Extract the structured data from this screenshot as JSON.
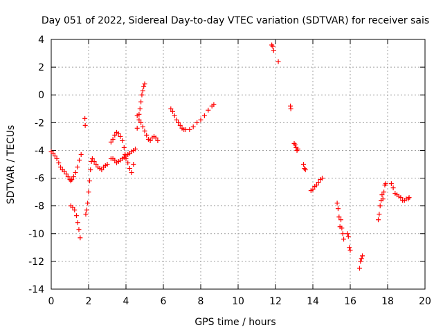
{
  "chart_data": {
    "type": "scatter",
    "title": "Day 051 of 2022, Sidereal Day-to-day VTEC variation (SDTVAR) for receiver sais",
    "xlabel": "GPS time / hours",
    "ylabel": "SDTVAR / TECUs",
    "xlim": [
      0,
      20
    ],
    "ylim": [
      -14,
      4
    ],
    "xticks": [
      0,
      2,
      4,
      6,
      8,
      10,
      12,
      14,
      16,
      18,
      20
    ],
    "yticks": [
      -14,
      -12,
      -10,
      -8,
      -6,
      -4,
      -2,
      0,
      2,
      4
    ],
    "grid": true,
    "marker": "+",
    "color": "#ff0000",
    "series": [
      {
        "name": "SDTVAR",
        "points": [
          [
            0.0,
            -4.1
          ],
          [
            0.1,
            -4.2
          ],
          [
            0.2,
            -4.4
          ],
          [
            0.3,
            -4.6
          ],
          [
            0.4,
            -4.9
          ],
          [
            0.5,
            -5.2
          ],
          [
            0.6,
            -5.4
          ],
          [
            0.7,
            -5.5
          ],
          [
            0.8,
            -5.7
          ],
          [
            0.9,
            -5.9
          ],
          [
            1.0,
            -6.1
          ],
          [
            1.05,
            -6.2
          ],
          [
            1.1,
            -6.1
          ],
          [
            1.2,
            -5.9
          ],
          [
            1.3,
            -5.6
          ],
          [
            1.4,
            -5.2
          ],
          [
            1.5,
            -4.7
          ],
          [
            1.6,
            -4.3
          ],
          [
            1.05,
            -8.0
          ],
          [
            1.15,
            -8.1
          ],
          [
            1.25,
            -8.3
          ],
          [
            1.35,
            -8.7
          ],
          [
            1.42,
            -9.2
          ],
          [
            1.48,
            -9.7
          ],
          [
            1.55,
            -10.3
          ],
          [
            1.8,
            -1.7
          ],
          [
            1.82,
            -2.2
          ],
          [
            1.85,
            -8.6
          ],
          [
            1.9,
            -8.3
          ],
          [
            1.95,
            -7.8
          ],
          [
            2.0,
            -7.0
          ],
          [
            2.05,
            -6.2
          ],
          [
            2.1,
            -5.4
          ],
          [
            2.15,
            -4.8
          ],
          [
            2.2,
            -4.6
          ],
          [
            2.3,
            -4.8
          ],
          [
            2.4,
            -5.0
          ],
          [
            2.5,
            -5.2
          ],
          [
            2.6,
            -5.3
          ],
          [
            2.7,
            -5.4
          ],
          [
            2.8,
            -5.2
          ],
          [
            2.9,
            -5.1
          ],
          [
            3.0,
            -5.0
          ],
          [
            3.2,
            -4.6
          ],
          [
            3.3,
            -4.6
          ],
          [
            3.4,
            -4.7
          ],
          [
            3.5,
            -4.9
          ],
          [
            3.6,
            -4.8
          ],
          [
            3.7,
            -4.7
          ],
          [
            3.8,
            -4.6
          ],
          [
            3.9,
            -4.5
          ],
          [
            4.0,
            -4.4
          ],
          [
            4.1,
            -4.3
          ],
          [
            4.2,
            -4.2
          ],
          [
            4.3,
            -4.1
          ],
          [
            4.4,
            -4.0
          ],
          [
            3.2,
            -3.4
          ],
          [
            3.3,
            -3.2
          ],
          [
            3.4,
            -2.9
          ],
          [
            3.5,
            -2.7
          ],
          [
            3.6,
            -2.8
          ],
          [
            3.7,
            -3.0
          ],
          [
            3.8,
            -3.3
          ],
          [
            3.9,
            -3.8
          ],
          [
            3.95,
            -4.3
          ],
          [
            4.0,
            -4.6
          ],
          [
            4.1,
            -4.9
          ],
          [
            4.2,
            -5.3
          ],
          [
            4.3,
            -5.6
          ],
          [
            4.4,
            -5.0
          ],
          [
            4.5,
            -3.9
          ],
          [
            4.6,
            -2.4
          ],
          [
            4.7,
            -1.4
          ],
          [
            4.75,
            -1.0
          ],
          [
            4.8,
            -0.5
          ],
          [
            4.85,
            0.0
          ],
          [
            4.9,
            0.3
          ],
          [
            4.95,
            0.6
          ],
          [
            5.0,
            0.8
          ],
          [
            4.6,
            -1.5
          ],
          [
            4.7,
            -1.8
          ],
          [
            4.8,
            -2.0
          ],
          [
            4.9,
            -2.3
          ],
          [
            5.0,
            -2.6
          ],
          [
            5.1,
            -2.9
          ],
          [
            5.2,
            -3.2
          ],
          [
            5.3,
            -3.3
          ],
          [
            5.4,
            -3.1
          ],
          [
            5.5,
            -3.0
          ],
          [
            5.6,
            -3.1
          ],
          [
            5.7,
            -3.3
          ],
          [
            6.4,
            -1.0
          ],
          [
            6.5,
            -1.2
          ],
          [
            6.6,
            -1.5
          ],
          [
            6.7,
            -1.8
          ],
          [
            6.8,
            -2.0
          ],
          [
            6.9,
            -2.2
          ],
          [
            7.0,
            -2.4
          ],
          [
            7.1,
            -2.5
          ],
          [
            7.2,
            -2.5
          ],
          [
            7.4,
            -2.5
          ],
          [
            7.6,
            -2.3
          ],
          [
            7.8,
            -2.0
          ],
          [
            8.0,
            -1.8
          ],
          [
            8.2,
            -1.5
          ],
          [
            8.4,
            -1.1
          ],
          [
            8.6,
            -0.8
          ],
          [
            8.7,
            -0.7
          ],
          [
            11.8,
            3.6
          ],
          [
            11.85,
            3.5
          ],
          [
            11.9,
            3.2
          ],
          [
            12.15,
            2.4
          ],
          [
            12.8,
            -0.8
          ],
          [
            12.82,
            -1.0
          ],
          [
            13.0,
            -3.5
          ],
          [
            13.05,
            -3.6
          ],
          [
            13.1,
            -3.8
          ],
          [
            13.15,
            -4.0
          ],
          [
            13.2,
            -3.9
          ],
          [
            13.5,
            -5.0
          ],
          [
            13.55,
            -5.3
          ],
          [
            13.6,
            -5.4
          ],
          [
            13.9,
            -6.9
          ],
          [
            14.0,
            -6.8
          ],
          [
            14.1,
            -6.6
          ],
          [
            14.2,
            -6.5
          ],
          [
            14.3,
            -6.3
          ],
          [
            14.4,
            -6.1
          ],
          [
            14.5,
            -6.0
          ],
          [
            15.3,
            -7.8
          ],
          [
            15.35,
            -8.2
          ],
          [
            15.4,
            -8.8
          ],
          [
            15.45,
            -9.5
          ],
          [
            15.5,
            -9.0
          ],
          [
            15.55,
            -9.6
          ],
          [
            15.6,
            -10.0
          ],
          [
            15.65,
            -10.4
          ],
          [
            15.85,
            -10.0
          ],
          [
            15.9,
            -10.2
          ],
          [
            15.95,
            -11.0
          ],
          [
            16.0,
            -11.2
          ],
          [
            16.5,
            -12.5
          ],
          [
            16.55,
            -12.0
          ],
          [
            16.6,
            -11.8
          ],
          [
            16.65,
            -11.6
          ],
          [
            17.5,
            -9.0
          ],
          [
            17.55,
            -8.6
          ],
          [
            17.6,
            -8.0
          ],
          [
            17.65,
            -7.6
          ],
          [
            17.7,
            -7.2
          ],
          [
            17.75,
            -7.5
          ],
          [
            17.8,
            -7.0
          ],
          [
            17.85,
            -6.5
          ],
          [
            17.9,
            -6.4
          ],
          [
            18.2,
            -6.4
          ],
          [
            18.3,
            -6.7
          ],
          [
            18.4,
            -7.1
          ],
          [
            18.5,
            -7.2
          ],
          [
            18.6,
            -7.3
          ],
          [
            18.7,
            -7.4
          ],
          [
            18.8,
            -7.6
          ],
          [
            18.9,
            -7.6
          ],
          [
            19.0,
            -7.5
          ],
          [
            19.1,
            -7.5
          ],
          [
            19.15,
            -7.4
          ]
        ]
      }
    ]
  }
}
